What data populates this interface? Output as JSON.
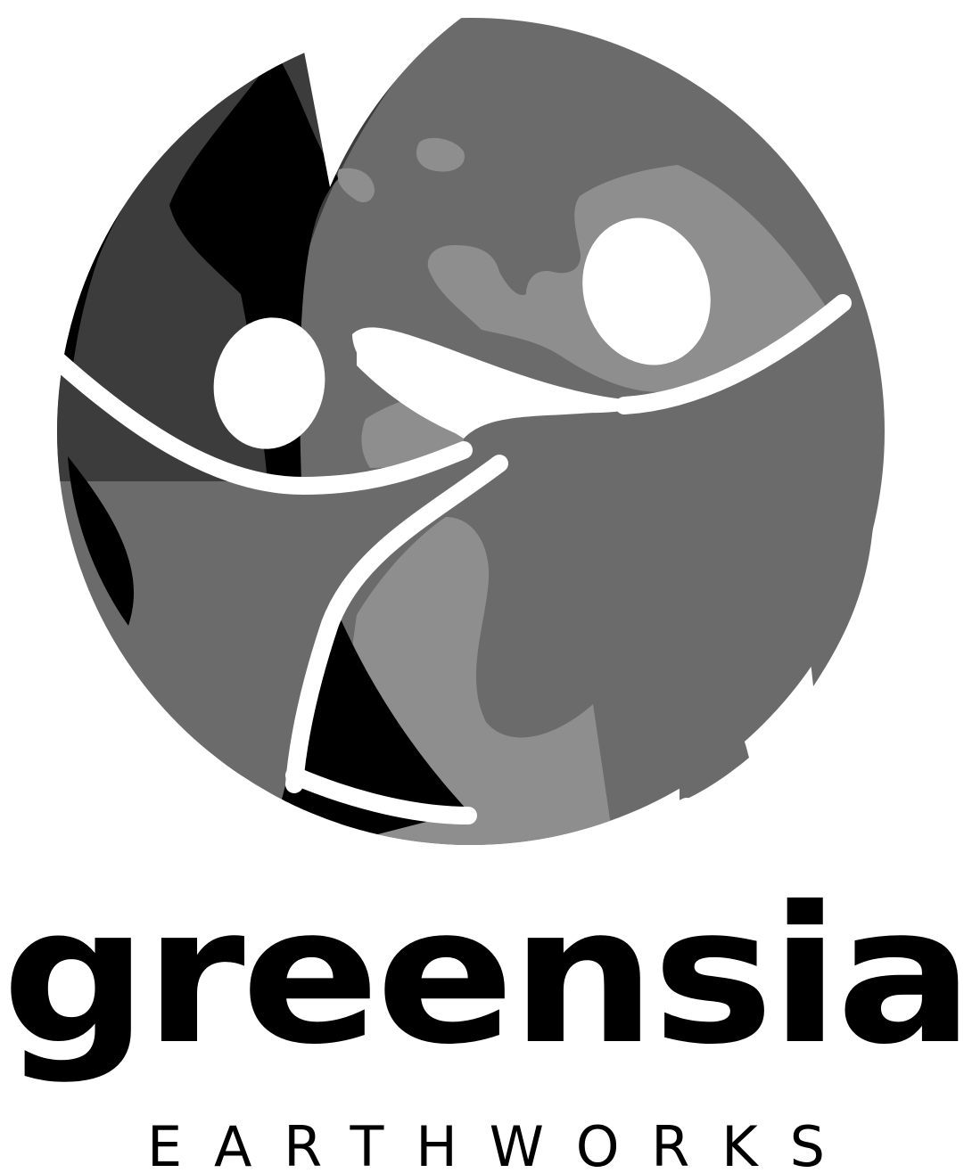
{
  "brand": {
    "name": "greensia",
    "tagline": "EARTHWORKS"
  },
  "colors": {
    "black": "#000000",
    "dark_gray": "#3c3c3c",
    "mid_gray": "#6b6b6b",
    "light_gray": "#8e8e8e",
    "white": "#ffffff"
  },
  "icons": {
    "emblem": "globe-with-three-figures-icon"
  }
}
